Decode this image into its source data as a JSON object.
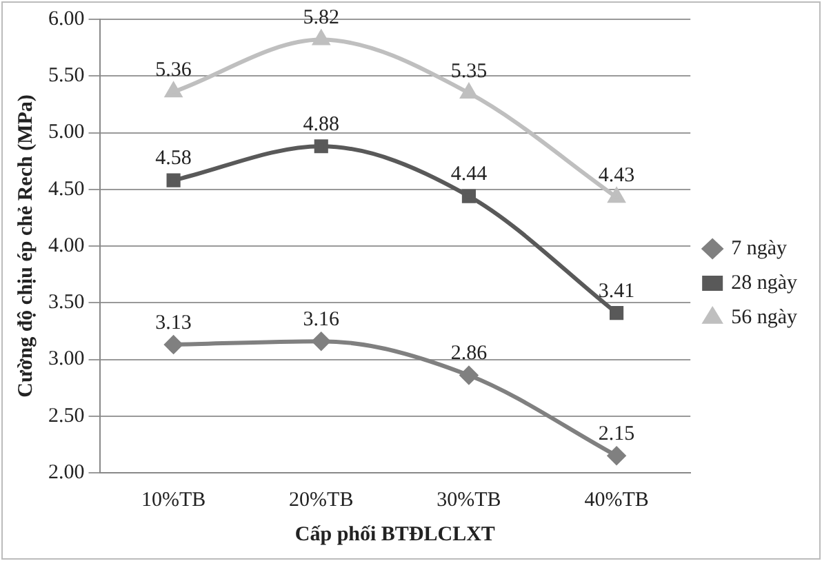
{
  "chart_data": {
    "type": "line",
    "xlabel": "Cấp phối BTĐLCLXT",
    "ylabel": "Cường độ chịu ép chẻ Rech (MPa)",
    "categories": [
      "10%TB",
      "20%TB",
      "30%TB",
      "40%TB"
    ],
    "series": [
      {
        "name": "7 ngày",
        "color": "#808080",
        "marker": "diamond",
        "values": [
          3.13,
          3.16,
          2.86,
          2.15
        ]
      },
      {
        "name": "28 ngày",
        "color": "#595959",
        "marker": "square",
        "values": [
          4.58,
          4.88,
          4.44,
          3.41
        ]
      },
      {
        "name": "56 ngày",
        "color": "#bfbfbf",
        "marker": "triangle",
        "values": [
          5.36,
          5.82,
          5.35,
          4.43
        ]
      }
    ],
    "ylim": [
      2,
      6
    ],
    "yticks": [
      {
        "value": 2,
        "label": "2.00"
      },
      {
        "value": 2.5,
        "label": "2.50"
      },
      {
        "value": 3,
        "label": "3.00"
      },
      {
        "value": 3.5,
        "label": "3.50"
      },
      {
        "value": 4,
        "label": "4.00"
      },
      {
        "value": 4.5,
        "label": "4.50"
      },
      {
        "value": 5,
        "label": "5.00"
      },
      {
        "value": 5.5,
        "label": "5.50"
      },
      {
        "value": 6,
        "label": "6.00"
      }
    ],
    "grid": "y",
    "legend": "right",
    "data_labels": true,
    "line_style": "solid"
  }
}
